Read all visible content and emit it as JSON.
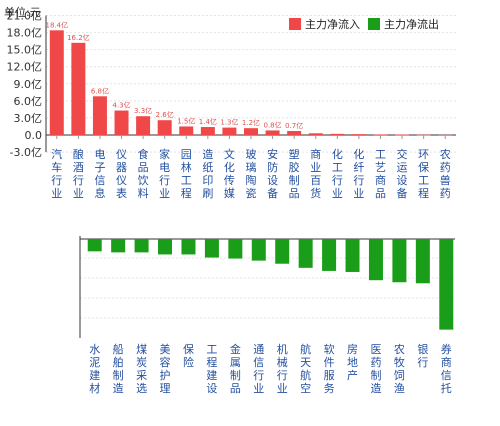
{
  "unit_label": "单位:元",
  "chart_data": [
    {
      "type": "bar",
      "panel": "inflow",
      "legend": [
        {
          "name": "主力净流入",
          "color": "#f04848"
        },
        {
          "name": "主力净流出",
          "color": "#1a9e1a"
        }
      ],
      "y_ticks": [
        "21.0亿",
        "18.0亿",
        "15.0亿",
        "12.0亿",
        "9.0亿",
        "6.0亿",
        "3.0亿",
        "0.0",
        "-3.0亿"
      ],
      "ylim": [
        -3.0,
        21.0
      ],
      "grid": true,
      "categories": [
        "汽车行业",
        "酿酒行业",
        "电子信息",
        "仪器仪表",
        "食品饮料",
        "家电行业",
        "园林工程",
        "造纸印刷",
        "文化传媒",
        "玻璃陶瓷",
        "安防设备",
        "塑胶制品",
        "商业百货",
        "化工行业",
        "化纤行业",
        "工艺商品",
        "交运设备",
        "环保工程",
        "农药兽药"
      ],
      "values": [
        18.4,
        16.2,
        6.8,
        4.3,
        3.3,
        2.6,
        1.5,
        1.4,
        1.3,
        1.2,
        0.8,
        0.7,
        0.3,
        0.2,
        0.15,
        0.1,
        0.08,
        0.05,
        0.03
      ],
      "data_labels": [
        "18.4亿",
        "16.2亿",
        "6.8亿",
        "4.3亿",
        "3.3亿",
        "2.6亿",
        "1.5亿",
        "1.4亿",
        "1.3亿",
        "1.2亿",
        "0.8亿",
        "0.7亿",
        "",
        "",
        "",
        "",
        "",
        "",
        ""
      ],
      "color": "#f04848"
    },
    {
      "type": "bar",
      "panel": "outflow",
      "grid": true,
      "categories": [
        "水泥建材",
        "船舶制造",
        "煤炭采选",
        "美容护理",
        "保险",
        "工程建设",
        "金属制品",
        "通信行业",
        "机械行业",
        "航天航空",
        "软件服务",
        "房地产",
        "医药制造",
        "农牧饲渔",
        "银行",
        "券商信托"
      ],
      "values": [
        -1.2,
        -1.3,
        -1.3,
        -1.5,
        -1.5,
        -1.8,
        -1.9,
        -2.1,
        -2.4,
        -2.8,
        -3.1,
        -3.2,
        -4.0,
        -4.2,
        -4.3,
        -8.8
      ],
      "color": "#1a9e1a",
      "ylim": [
        -9.5,
        0
      ]
    }
  ]
}
